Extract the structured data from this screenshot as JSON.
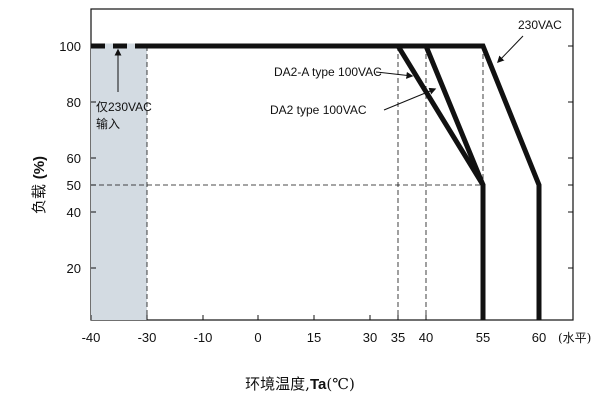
{
  "chart_data": {
    "type": "line",
    "xlabel": {
      "prefix": "环境温度,",
      "strong": "Ta",
      "suffix": "(℃)"
    },
    "x_unit_note": "(水平)",
    "ylabel": {
      "prefix": "负载 ",
      "strong": "(%)"
    },
    "x_tick_values": [
      -40,
      -30,
      -10,
      0,
      15,
      30,
      35,
      40,
      55,
      60
    ],
    "y_tick_values": [
      20,
      40,
      50,
      60,
      80,
      100
    ],
    "x_ticks": [
      "-40",
      "-30",
      "-10",
      "0",
      "15",
      "30",
      "35",
      "40",
      "55",
      "60"
    ],
    "y_ticks": [
      "20",
      "40",
      "50",
      "60",
      "80",
      "100"
    ],
    "xlim": [
      -40,
      70
    ],
    "ylim": [
      0,
      110
    ],
    "shaded_region": {
      "x": [
        -40,
        -30
      ],
      "y": [
        0,
        100
      ],
      "color": "#d3dbe2"
    },
    "reference_lines": {
      "vertical": [
        -30,
        35,
        40,
        55
      ],
      "horizontal": [
        50
      ],
      "style": "dashed"
    },
    "series": [
      {
        "name": "230VAC",
        "x": [
          -40,
          55,
          60,
          60
        ],
        "y": [
          100,
          100,
          50,
          0
        ]
      },
      {
        "name": "DA2-A type 100VAC",
        "x": [
          -40,
          40,
          55,
          55
        ],
        "y": [
          100,
          100,
          50,
          0
        ]
      },
      {
        "name": "DA2 type 100VAC",
        "x": [
          -40,
          35,
          55,
          55
        ],
        "y": [
          100,
          100,
          50,
          0
        ]
      }
    ],
    "annotations": {
      "series_230": "230VAC",
      "series_da2a": "DA2-A type 100VAC",
      "series_da2": "DA2 type 100VAC",
      "only_230_line1": "仅230VAC",
      "only_230_line2": "输入"
    },
    "line_color": "#111111",
    "shade_color": "#d3dbe2"
  }
}
